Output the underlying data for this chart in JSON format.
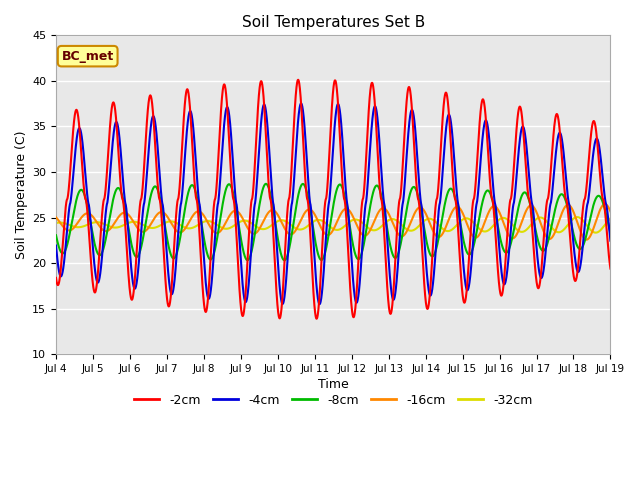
{
  "title": "Soil Temperatures Set B",
  "xlabel": "Time",
  "ylabel": "Soil Temperature (C)",
  "ylim": [
    10,
    45
  ],
  "yticks": [
    10,
    15,
    20,
    25,
    30,
    35,
    40,
    45
  ],
  "xtick_labels": [
    "Jul 4",
    "Jul 5",
    "Jul 6",
    "Jul 7",
    "Jul 8",
    "Jul 9",
    "Jul 10",
    "Jul 11",
    "Jul 12",
    "Jul 13",
    "Jul 14",
    "Jul 15",
    "Jul 16",
    "Jul 17",
    "Jul 18",
    "Jul 19"
  ],
  "annotation_text": "BC_met",
  "line_colors": {
    "-2cm": "#ff0000",
    "-4cm": "#0000dd",
    "-8cm": "#00bb00",
    "-16cm": "#ff8800",
    "-32cm": "#dddd00"
  },
  "bg_color": "#e8e8e8",
  "grid_color": "#ffffff",
  "fig_bg": "#ffffff",
  "annotation_bg": "#ffff99",
  "annotation_border": "#cc8800",
  "annotation_text_color": "#660000"
}
